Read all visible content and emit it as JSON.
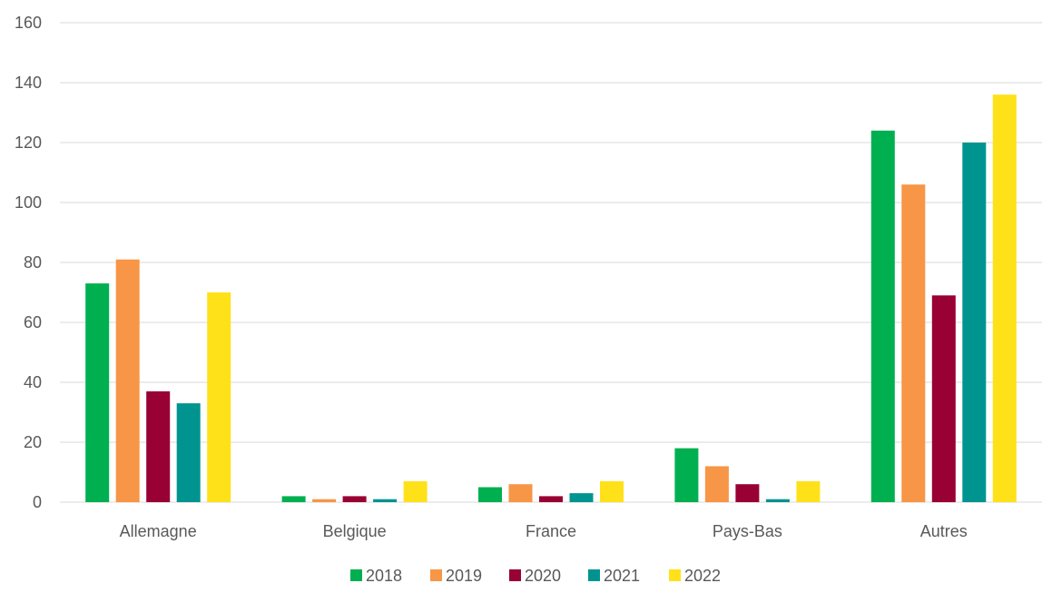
{
  "chart_data": {
    "type": "bar",
    "categories": [
      "Allemagne",
      "Belgique",
      "France",
      "Pays-Bas",
      "Autres"
    ],
    "series": [
      {
        "name": "2018",
        "color": "#00b050",
        "values": [
          73,
          2,
          5,
          18,
          124
        ]
      },
      {
        "name": "2019",
        "color": "#f79646",
        "values": [
          81,
          1,
          6,
          12,
          106
        ]
      },
      {
        "name": "2020",
        "color": "#990033",
        "values": [
          37,
          2,
          2,
          6,
          69
        ]
      },
      {
        "name": "2021",
        "color": "#009490",
        "values": [
          33,
          1,
          3,
          1,
          120
        ]
      },
      {
        "name": "2022",
        "color": "#ffe119",
        "values": [
          70,
          7,
          7,
          7,
          136
        ]
      }
    ],
    "ylim": [
      0,
      160
    ],
    "yticks": [
      "0",
      "20",
      "40",
      "60",
      "80",
      "100",
      "120",
      "140",
      "160"
    ],
    "grid": true,
    "legend_position": "bottom",
    "title": "",
    "xlabel": "",
    "ylabel": ""
  }
}
